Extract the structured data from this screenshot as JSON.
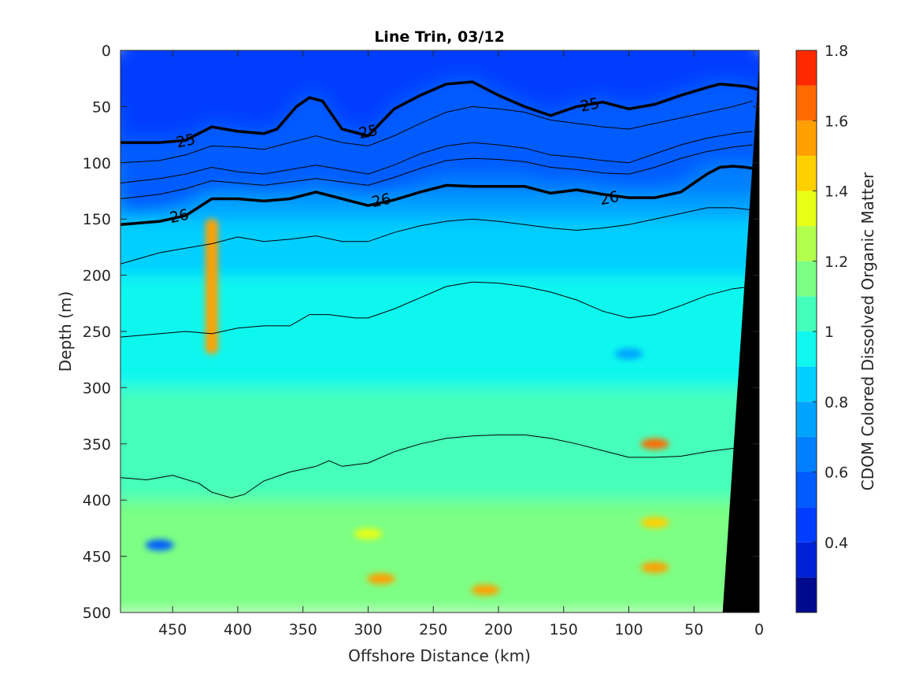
{
  "chart_data": {
    "type": "heatmap",
    "title": "Line Trin, 03/12",
    "xlabel": "Offshore Distance (km)",
    "ylabel": "Depth (m)",
    "colorbar_label": "CDOM Colored Dissolved Organic Matter",
    "xlim": [
      490,
      0
    ],
    "ylim": [
      0,
      500
    ],
    "x_ticks": [
      450,
      400,
      350,
      300,
      250,
      200,
      150,
      100,
      50,
      0
    ],
    "y_ticks": [
      0,
      50,
      100,
      150,
      200,
      250,
      300,
      350,
      400,
      450,
      500
    ],
    "colorbar_range": [
      0.2,
      1.8
    ],
    "colorbar_ticks": [
      0.4,
      0.6,
      0.8,
      1,
      1.2,
      1.4,
      1.6,
      1.8
    ],
    "colorbar_levels": [
      0.2,
      0.3,
      0.4,
      0.5,
      0.6,
      0.7,
      0.8,
      0.9,
      1.0,
      1.1,
      1.2,
      1.3,
      1.4,
      1.5,
      1.6,
      1.7,
      1.8
    ],
    "colormap": [
      "#000a8f",
      "#0022d6",
      "#003dff",
      "#005cff",
      "#0080ff",
      "#00a4ff",
      "#00cfff",
      "#10f7ef",
      "#44ffbb",
      "#7bff84",
      "#b2ff4d",
      "#e8ff16",
      "#ffd000",
      "#ffa000",
      "#ff6a00",
      "#ff2a00",
      "#c80000"
    ],
    "grid": false,
    "cdom_profile": {
      "depth": [
        0,
        50,
        100,
        130,
        150,
        200,
        250,
        300,
        350,
        400,
        450,
        500
      ],
      "values": [
        0.45,
        0.5,
        0.62,
        0.7,
        0.82,
        0.92,
        0.98,
        1.02,
        1.06,
        1.1,
        1.12,
        1.15
      ]
    },
    "features": [
      {
        "x": 420,
        "depth_range": [
          150,
          270
        ],
        "value": 1.5
      },
      {
        "x": 290,
        "depth": 470,
        "value": 1.55
      },
      {
        "x": 300,
        "depth": 430,
        "value": 1.35
      },
      {
        "x": 80,
        "depth": 350,
        "value": 1.6
      },
      {
        "x": 80,
        "depth": 420,
        "value": 1.45
      },
      {
        "x": 80,
        "depth": 460,
        "value": 1.5
      },
      {
        "x": 210,
        "depth": 480,
        "value": 1.55
      },
      {
        "x": 460,
        "depth": 440,
        "value": 0.55
      },
      {
        "x": 100,
        "depth": 270,
        "value": 0.7
      }
    ],
    "series": [
      {
        "name": "25",
        "style": "bold",
        "x": [
          490,
          460,
          440,
          420,
          400,
          380,
          370,
          355,
          345,
          335,
          320,
          300,
          295,
          280,
          260,
          240,
          220,
          200,
          180,
          160,
          140,
          120,
          100,
          80,
          60,
          40,
          30,
          20,
          10,
          0
        ],
        "y": [
          82,
          82,
          80,
          68,
          72,
          74,
          70,
          50,
          42,
          45,
          70,
          76,
          70,
          52,
          40,
          30,
          28,
          40,
          50,
          58,
          50,
          46,
          52,
          48,
          40,
          33,
          30,
          31,
          32,
          35
        ]
      },
      {
        "name": "26",
        "style": "bold",
        "x": [
          490,
          460,
          440,
          420,
          400,
          380,
          360,
          340,
          320,
          300,
          280,
          260,
          240,
          220,
          200,
          180,
          160,
          140,
          120,
          100,
          80,
          60,
          50,
          40,
          30,
          20,
          10,
          0
        ],
        "y": [
          155,
          152,
          147,
          132,
          132,
          134,
          132,
          126,
          132,
          138,
          133,
          126,
          120,
          121,
          121,
          121,
          127,
          124,
          128,
          131,
          131,
          126,
          118,
          110,
          104,
          103,
          104,
          106
        ]
      },
      {
        "name": "",
        "style": "thin",
        "x": [
          490,
          460,
          440,
          420,
          400,
          380,
          360,
          340,
          320,
          300,
          280,
          260,
          240,
          220,
          200,
          180,
          160,
          140,
          120,
          100,
          80,
          60,
          40,
          20,
          5
        ],
        "y": [
          100,
          98,
          93,
          85,
          86,
          88,
          82,
          76,
          82,
          85,
          76,
          65,
          55,
          50,
          52,
          55,
          62,
          65,
          68,
          70,
          65,
          60,
          55,
          50,
          45
        ]
      },
      {
        "name": "",
        "style": "thin",
        "x": [
          490,
          460,
          440,
          420,
          400,
          380,
          360,
          340,
          320,
          300,
          280,
          260,
          240,
          220,
          200,
          180,
          160,
          140,
          120,
          100,
          80,
          60,
          40,
          20,
          5
        ],
        "y": [
          118,
          114,
          110,
          104,
          108,
          110,
          106,
          102,
          106,
          110,
          102,
          92,
          85,
          82,
          84,
          87,
          93,
          95,
          98,
          100,
          92,
          84,
          78,
          74,
          72
        ]
      },
      {
        "name": "",
        "style": "thin",
        "x": [
          490,
          460,
          440,
          420,
          400,
          380,
          360,
          340,
          320,
          300,
          280,
          260,
          240,
          220,
          200,
          180,
          160,
          140,
          120,
          100,
          80,
          60,
          40,
          20,
          5
        ],
        "y": [
          132,
          128,
          123,
          116,
          118,
          120,
          117,
          114,
          117,
          120,
          113,
          105,
          98,
          96,
          97,
          99,
          104,
          106,
          109,
          110,
          104,
          96,
          90,
          86,
          84
        ]
      },
      {
        "name": "",
        "style": "thin",
        "x": [
          490,
          460,
          440,
          420,
          400,
          380,
          360,
          340,
          320,
          300,
          280,
          260,
          240,
          220,
          200,
          180,
          160,
          140,
          120,
          100,
          80,
          60,
          40,
          20,
          5
        ],
        "y": [
          190,
          180,
          176,
          172,
          166,
          170,
          168,
          165,
          170,
          170,
          162,
          156,
          152,
          150,
          152,
          155,
          158,
          160,
          158,
          155,
          150,
          145,
          140,
          140,
          142
        ]
      },
      {
        "name": "",
        "style": "thin",
        "x": [
          490,
          460,
          440,
          420,
          400,
          380,
          360,
          345,
          330,
          310,
          300,
          280,
          260,
          240,
          220,
          200,
          180,
          160,
          140,
          120,
          100,
          80,
          60,
          40,
          20,
          5
        ],
        "y": [
          255,
          252,
          250,
          252,
          247,
          245,
          245,
          235,
          235,
          238,
          238,
          230,
          220,
          210,
          206,
          207,
          210,
          215,
          222,
          232,
          238,
          235,
          227,
          218,
          212,
          210
        ]
      },
      {
        "name": "",
        "style": "thin",
        "x": [
          490,
          470,
          450,
          430,
          420,
          405,
          395,
          380,
          360,
          340,
          330,
          320,
          300,
          280,
          260,
          240,
          220,
          200,
          180,
          160,
          140,
          120,
          100,
          80,
          60,
          40,
          20,
          5
        ],
        "y": [
          380,
          382,
          378,
          385,
          393,
          398,
          395,
          383,
          375,
          370,
          365,
          370,
          367,
          357,
          350,
          345,
          343,
          342,
          342,
          345,
          350,
          356,
          362,
          362,
          361,
          357,
          354,
          353
        ]
      }
    ],
    "labels": [
      {
        "text": "25",
        "x": 440,
        "y": 80
      },
      {
        "text": "25",
        "x": 300,
        "y": 72
      },
      {
        "text": "25",
        "x": 130,
        "y": 48
      },
      {
        "text": "26",
        "x": 445,
        "y": 147
      },
      {
        "text": "26",
        "x": 290,
        "y": 133
      },
      {
        "text": "26",
        "x": 115,
        "y": 131
      }
    ],
    "land_mask": {
      "top_x": 0,
      "top_y": 12,
      "bottom_x": 28,
      "bottom_y": 500
    }
  }
}
